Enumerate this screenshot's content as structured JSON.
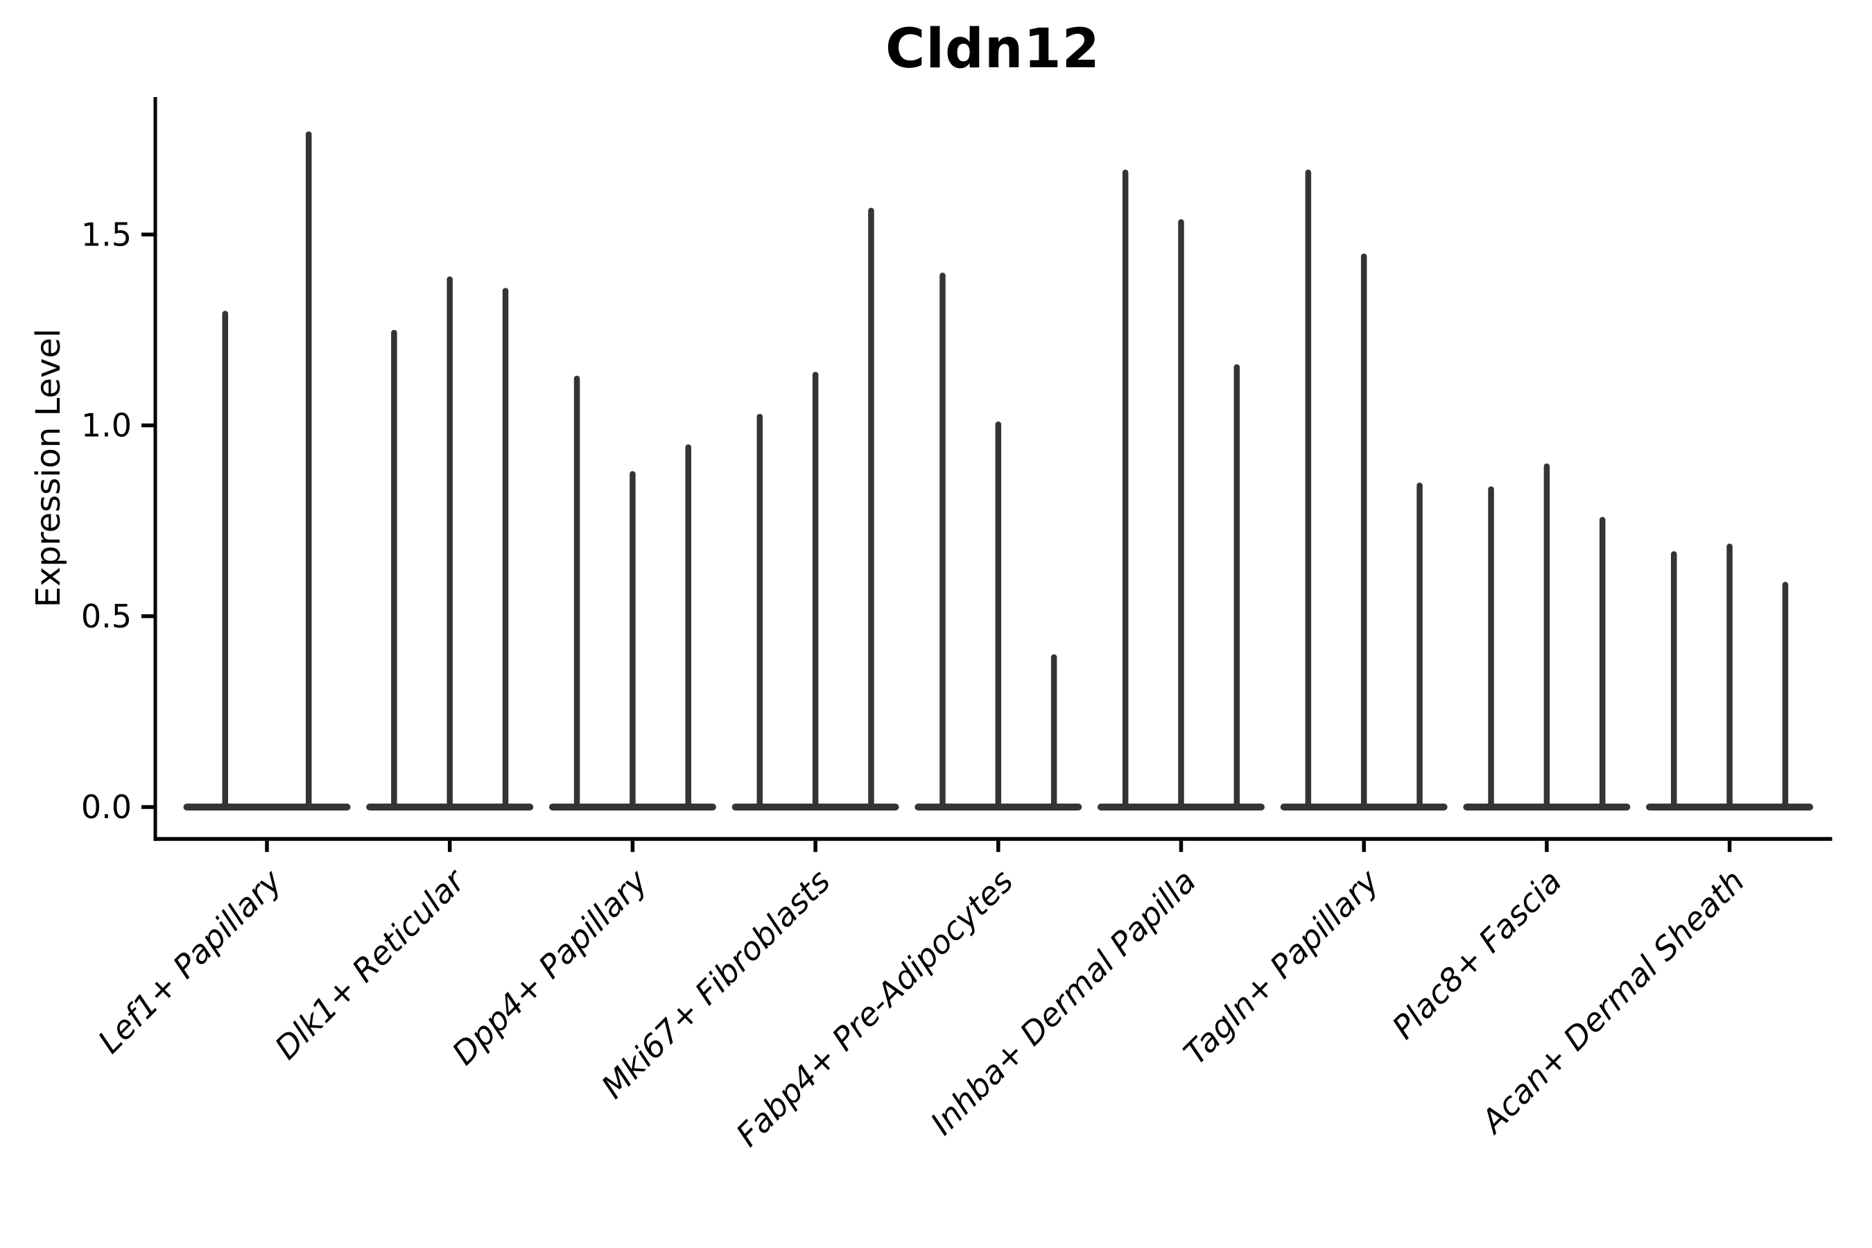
{
  "chart_data": {
    "type": "violin",
    "title": "Cldn12",
    "ylabel": "Expression Level",
    "xlabel": "",
    "categories": [
      "Lef1+ Papillary",
      "Dlk1+ Reticular",
      "Dpp4+ Papillary",
      "Mki67+ Fibroblasts",
      "Fabp4+ Pre-Adipocytes",
      "Inhba+ Dermal Papilla",
      "Tagln+ Papillary",
      "Plac8+ Fascia",
      "Acan+ Dermal Sheath"
    ],
    "series": [
      {
        "category": "Lef1+ Papillary",
        "violin_peak_values": [
          1.3,
          1.77
        ]
      },
      {
        "category": "Dlk1+ Reticular",
        "violin_peak_values": [
          1.25,
          1.39,
          1.36
        ]
      },
      {
        "category": "Dpp4+ Papillary",
        "violin_peak_values": [
          1.13,
          0.88,
          0.95
        ]
      },
      {
        "category": "Mki67+ Fibroblasts",
        "violin_peak_values": [
          1.03,
          1.14,
          1.57
        ]
      },
      {
        "category": "Fabp4+ Pre-Adipocytes",
        "violin_peak_values": [
          1.4,
          1.01,
          0.4
        ]
      },
      {
        "category": "Inhba+ Dermal Papilla",
        "violin_peak_values": [
          1.67,
          1.54,
          1.16
        ]
      },
      {
        "category": "Tagln+ Papillary",
        "violin_peak_values": [
          1.67,
          1.45,
          0.85
        ]
      },
      {
        "category": "Plac8+ Fascia",
        "violin_peak_values": [
          0.84,
          0.9,
          0.76
        ]
      },
      {
        "category": "Acan+ Dermal Sheath",
        "violin_peak_values": [
          0.67,
          0.69,
          0.59
        ]
      }
    ],
    "violin_shape_note": "each violin is flat at 0 (zero-expression bulk) with a thin vertical spike up to its peak value",
    "yticks": [
      "0.0",
      "0.5",
      "1.0",
      "1.5"
    ],
    "ylim": [
      -0.08,
      1.86
    ],
    "grid": false,
    "legend": null,
    "x_tick_label_style": "italic, rotated 45deg, right-anchored",
    "colors": {
      "violin": "#343434",
      "axis": "#000000",
      "text": "#000000",
      "background": "#ffffff"
    }
  }
}
